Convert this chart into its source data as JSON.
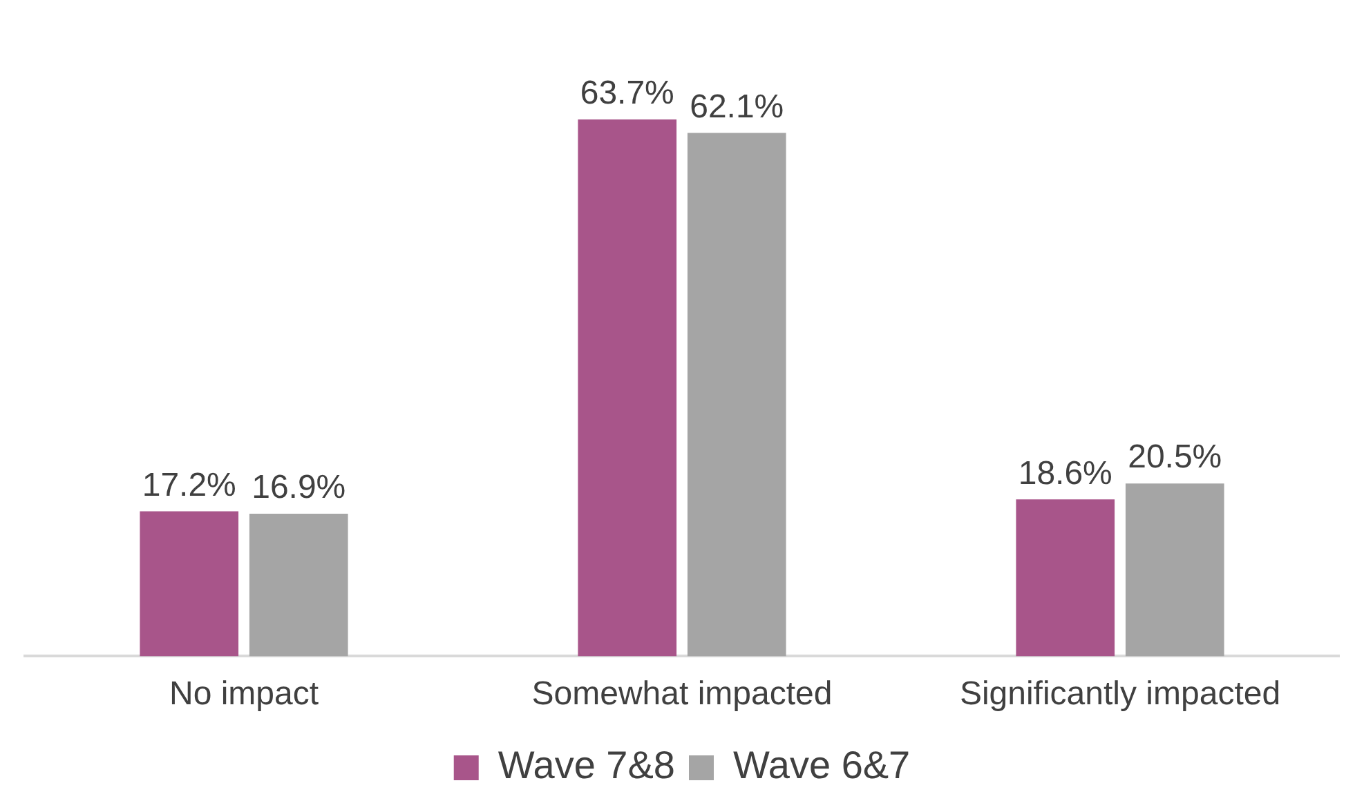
{
  "chart_data": {
    "type": "bar",
    "categories": [
      "No impact",
      "Somewhat impacted",
      "Significantly impacted"
    ],
    "series": [
      {
        "name": "Wave 7&8",
        "color": "#a8558a",
        "values": [
          17.2,
          63.7,
          18.6
        ],
        "value_labels": [
          "17.2%",
          "63.7%",
          "18.6%"
        ]
      },
      {
        "name": "Wave 6&7",
        "color": "#a5a5a5",
        "values": [
          16.9,
          62.1,
          20.5
        ],
        "value_labels": [
          "16.9%",
          "62.1%",
          "20.5%"
        ]
      }
    ],
    "legend": "bottom",
    "grid": false
  }
}
